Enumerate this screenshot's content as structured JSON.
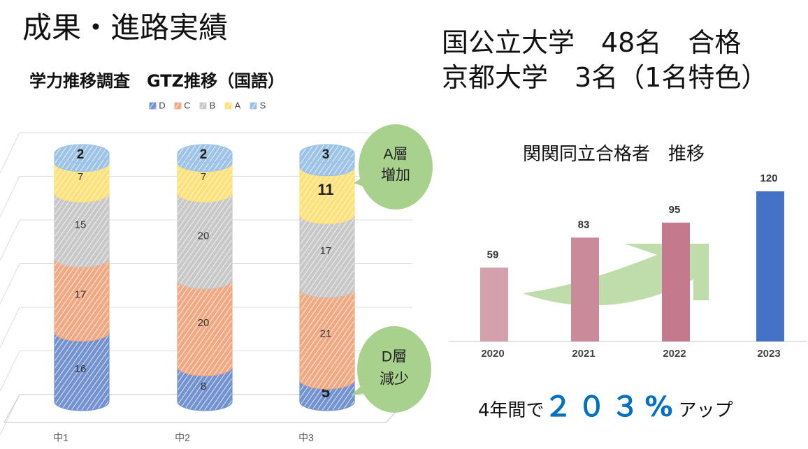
{
  "page_title": "成果・進路実績",
  "summary": {
    "line1": "国公立大学　48名　合格",
    "line2": "京都大学　3名（1名特色）"
  },
  "growth": {
    "prefix": "4年間で",
    "value": "２０３%",
    "suffix": "アップ"
  },
  "colors": {
    "D": "#7392D0",
    "C": "#F0A983",
    "B": "#C8C8C8",
    "A": "#FFE17A",
    "S": "#9DC3E6",
    "callout": "#A9D18E",
    "arrow": "#A9D18E",
    "bar_pink": "#D4A0AC",
    "bar_pink_mid": "#C98A99",
    "bar_pink_dark": "#C47A8C",
    "bar_blue": "#4472C4"
  },
  "chart_data": [
    {
      "type": "bar",
      "stacked": true,
      "title": "学力推移調査　GTZ推移（国語）",
      "legend_position": "top",
      "categories": [
        "中1",
        "中2",
        "中3"
      ],
      "series": [
        {
          "name": "D",
          "values": [
            16,
            8,
            5
          ]
        },
        {
          "name": "C",
          "values": [
            17,
            20,
            21
          ]
        },
        {
          "name": "B",
          "values": [
            15,
            20,
            17
          ]
        },
        {
          "name": "A",
          "values": [
            7,
            7,
            11
          ]
        },
        {
          "name": "S",
          "values": [
            2,
            2,
            3
          ]
        }
      ],
      "annotations": [
        "A層\n増加",
        "D層\n減少"
      ],
      "grid": true
    },
    {
      "type": "bar",
      "title": "関関同立合格者　推移",
      "categories": [
        "2020",
        "2021",
        "2022",
        "2023"
      ],
      "values": [
        59,
        83,
        95,
        120
      ],
      "ylim": [
        0,
        120
      ],
      "grid": false
    }
  ]
}
